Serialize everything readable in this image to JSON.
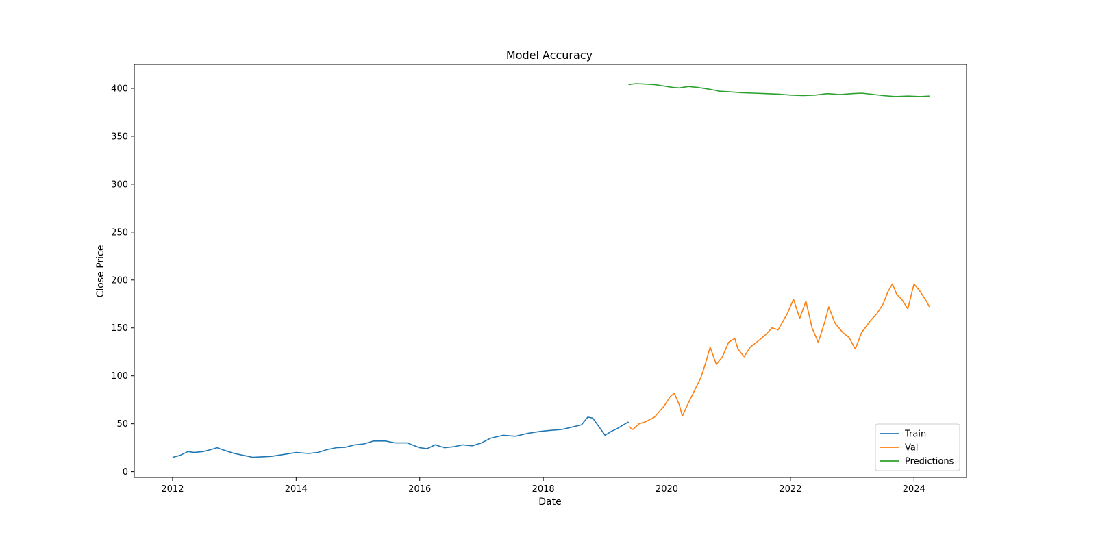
{
  "chart_data": {
    "type": "line",
    "title": "Model Accuracy",
    "xlabel": "Date",
    "ylabel": "Close Price",
    "xlim": [
      2011.38,
      2024.85
    ],
    "ylim": [
      -6,
      425
    ],
    "x_ticks": [
      2012,
      2014,
      2016,
      2018,
      2020,
      2022,
      2024
    ],
    "x_tick_labels": [
      "2012",
      "2014",
      "2016",
      "2018",
      "2020",
      "2022",
      "2024"
    ],
    "y_ticks": [
      0,
      50,
      100,
      150,
      200,
      250,
      300,
      350,
      400
    ],
    "y_tick_labels": [
      "0",
      "50",
      "100",
      "150",
      "200",
      "250",
      "300",
      "350",
      "400"
    ],
    "grid": false,
    "legend_position": "lower-right",
    "series": [
      {
        "name": "Train",
        "color": "#1f77b4",
        "x": [
          2012.0,
          2012.12,
          2012.25,
          2012.35,
          2012.5,
          2012.62,
          2012.72,
          2012.85,
          2013.0,
          2013.15,
          2013.3,
          2013.45,
          2013.6,
          2013.8,
          2014.0,
          2014.2,
          2014.35,
          2014.5,
          2014.65,
          2014.8,
          2014.95,
          2015.1,
          2015.25,
          2015.45,
          2015.6,
          2015.8,
          2016.0,
          2016.12,
          2016.25,
          2016.4,
          2016.55,
          2016.7,
          2016.85,
          2017.0,
          2017.15,
          2017.35,
          2017.55,
          2017.75,
          2017.95,
          2018.1,
          2018.3,
          2018.5,
          2018.62,
          2018.72,
          2018.8,
          2018.9,
          2019.0,
          2019.1,
          2019.2,
          2019.3,
          2019.38
        ],
        "y": [
          15,
          17,
          21,
          20,
          21,
          23,
          25,
          22,
          19,
          17,
          15,
          15.5,
          16,
          18,
          20,
          19,
          20,
          23,
          25,
          25.5,
          28,
          29,
          32,
          32,
          30,
          30,
          25,
          24,
          28,
          25,
          26,
          28,
          27,
          30,
          35,
          38,
          37,
          40,
          42,
          43,
          44,
          47,
          49,
          57,
          56,
          47,
          38,
          42,
          45,
          49,
          52
        ]
      },
      {
        "name": "Val",
        "color": "#ff7f0e",
        "x": [
          2019.38,
          2019.45,
          2019.55,
          2019.65,
          2019.8,
          2019.95,
          2020.05,
          2020.12,
          2020.2,
          2020.25,
          2020.35,
          2020.45,
          2020.55,
          2020.62,
          2020.7,
          2020.8,
          2020.9,
          2021.0,
          2021.1,
          2021.15,
          2021.25,
          2021.35,
          2021.45,
          2021.6,
          2021.7,
          2021.8,
          2021.95,
          2022.05,
          2022.15,
          2022.25,
          2022.35,
          2022.45,
          2022.55,
          2022.62,
          2022.72,
          2022.85,
          2022.95,
          2023.05,
          2023.15,
          2023.3,
          2023.4,
          2023.5,
          2023.58,
          2023.65,
          2023.72,
          2023.8,
          2023.9,
          2024.0,
          2024.1,
          2024.2,
          2024.25
        ],
        "y": [
          47,
          44,
          50,
          52,
          57,
          68,
          78,
          82,
          70,
          58,
          72,
          85,
          98,
          112,
          130,
          112,
          120,
          135,
          139,
          128,
          120,
          130,
          135,
          143,
          150,
          148,
          165,
          180,
          160,
          178,
          150,
          135,
          155,
          172,
          155,
          145,
          140,
          128,
          145,
          158,
          165,
          175,
          188,
          196,
          185,
          180,
          170,
          196,
          188,
          178,
          172
        ]
      },
      {
        "name": "Predictions",
        "color": "#2ca02c",
        "x": [
          2019.38,
          2019.5,
          2019.65,
          2019.8,
          2020.0,
          2020.1,
          2020.2,
          2020.35,
          2020.5,
          2020.7,
          2020.85,
          2021.0,
          2021.2,
          2021.4,
          2021.6,
          2021.8,
          2022.0,
          2022.2,
          2022.4,
          2022.6,
          2022.8,
          2023.0,
          2023.15,
          2023.3,
          2023.5,
          2023.7,
          2023.9,
          2024.1,
          2024.25
        ],
        "y": [
          404,
          405,
          404.5,
          404,
          402,
          401,
          400.5,
          402,
          401,
          399,
          397,
          396.5,
          395.5,
          395,
          394.5,
          394,
          393,
          392.5,
          393,
          394.5,
          393.5,
          394.5,
          395,
          394,
          392.5,
          391.5,
          392,
          391.5,
          392
        ]
      }
    ]
  }
}
